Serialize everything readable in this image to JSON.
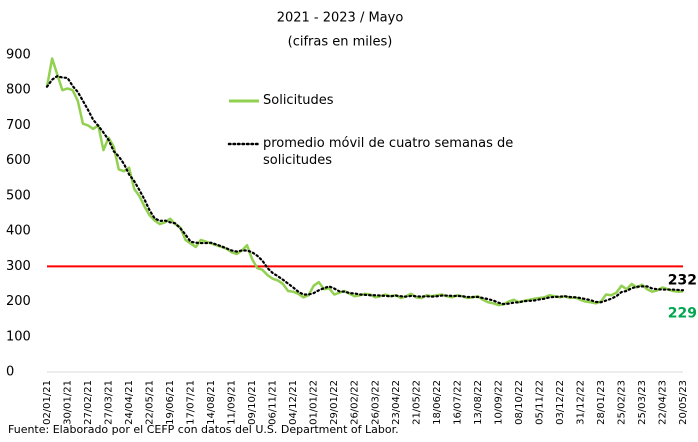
{
  "chart_data": {
    "type": "line",
    "subtitle": "2021 - 2023 / Mayo",
    "subtitle2": "(cifras en miles)",
    "source": "Fuente: Elaborado por el CEFP con datos del U.S. Department of Labor.",
    "categories": [
      "02/01/21",
      null,
      null,
      null,
      "30/01/21",
      null,
      null,
      null,
      "27/02/21",
      null,
      null,
      null,
      "27/03/21",
      null,
      null,
      null,
      "24/04/21",
      null,
      null,
      null,
      "22/05/21",
      null,
      null,
      null,
      "19/06/21",
      null,
      null,
      null,
      "17/07/21",
      null,
      null,
      null,
      "14/08/21",
      null,
      null,
      null,
      "11/09/21",
      null,
      null,
      null,
      "09/10/21",
      null,
      null,
      null,
      "06/11/21",
      null,
      null,
      null,
      "04/12/21",
      null,
      null,
      null,
      "01/01/22",
      null,
      null,
      null,
      "29/01/22",
      null,
      null,
      null,
      "26/02/22",
      null,
      null,
      null,
      "26/03/22",
      null,
      null,
      null,
      "23/04/22",
      null,
      null,
      null,
      "21/05/22",
      null,
      null,
      null,
      "18/06/22",
      null,
      null,
      null,
      "16/07/22",
      null,
      null,
      null,
      "13/08/22",
      null,
      null,
      null,
      "10/09/22",
      null,
      null,
      null,
      "08/10/22",
      null,
      null,
      null,
      "05/11/22",
      null,
      null,
      null,
      "03/12/22",
      null,
      null,
      null,
      "31/12/22",
      null,
      null,
      null,
      "28/01/23",
      null,
      null,
      null,
      "25/02/23",
      null,
      null,
      null,
      "25/03/23",
      null,
      null,
      null,
      "22/04/23",
      null,
      null,
      null,
      "20/05/23"
    ],
    "series": [
      {
        "name": "Solicitudes",
        "color": "#92d050",
        "dash": false,
        "values": [
          810,
          890,
          845,
          800,
          805,
          800,
          770,
          705,
          700,
          690,
          700,
          630,
          665,
          640,
          575,
          570,
          580,
          520,
          500,
          470,
          445,
          430,
          420,
          425,
          435,
          420,
          410,
          375,
          365,
          355,
          375,
          370,
          365,
          360,
          355,
          350,
          340,
          335,
          345,
          360,
          320,
          295,
          290,
          275,
          265,
          260,
          250,
          230,
          228,
          222,
          212,
          218,
          245,
          255,
          235,
          238,
          220,
          225,
          230,
          222,
          215,
          218,
          222,
          220,
          212,
          215,
          220,
          215,
          218,
          210,
          215,
          222,
          212,
          210,
          218,
          215,
          218,
          220,
          215,
          212,
          218,
          215,
          210,
          212,
          215,
          205,
          198,
          195,
          190,
          192,
          200,
          205,
          198,
          202,
          205,
          208,
          210,
          212,
          218,
          215,
          212,
          215,
          210,
          212,
          205,
          200,
          198,
          195,
          200,
          220,
          218,
          225,
          245,
          235,
          250,
          240,
          248,
          235,
          228,
          232,
          240,
          235,
          230,
          228,
          229
        ]
      },
      {
        "name": "promedio móvil de cuatro semanas de solicitudes",
        "color": "#000000",
        "dash": true,
        "values": [
          810,
          830,
          840,
          836,
          835,
          812,
          795,
          770,
          744,
          716,
          699,
          680,
          659,
          627,
          612,
          591,
          561,
          542,
          517,
          490,
          459,
          436,
          429,
          430,
          425,
          422,
          408,
          390,
          370,
          367,
          366,
          366,
          367,
          362,
          357,
          351,
          345,
          342,
          345,
          345,
          340,
          330,
          316,
          295,
          281,
          272,
          262,
          251,
          240,
          228,
          220,
          220,
          224,
          232,
          238,
          243,
          237,
          229,
          228,
          224,
          223,
          220,
          219,
          218,
          218,
          217,
          216,
          215,
          217,
          215,
          214,
          216,
          215,
          214,
          215,
          214,
          215,
          217,
          217,
          216,
          216,
          215,
          213,
          213,
          213,
          210,
          207,
          203,
          197,
          193,
          194,
          197,
          198,
          201,
          202,
          203,
          206,
          208,
          212,
          213,
          214,
          215,
          213,
          212,
          210,
          207,
          204,
          199,
          198,
          203,
          208,
          215,
          227,
          230,
          238,
          242,
          243,
          243,
          237,
          235,
          234,
          234,
          234,
          233,
          232
        ]
      }
    ],
    "reference_line": {
      "value": 300,
      "color": "#ff0000"
    },
    "ylim": [
      0,
      900
    ],
    "yticks": [
      0,
      100,
      200,
      300,
      400,
      500,
      600,
      700,
      800,
      900
    ]
  }
}
